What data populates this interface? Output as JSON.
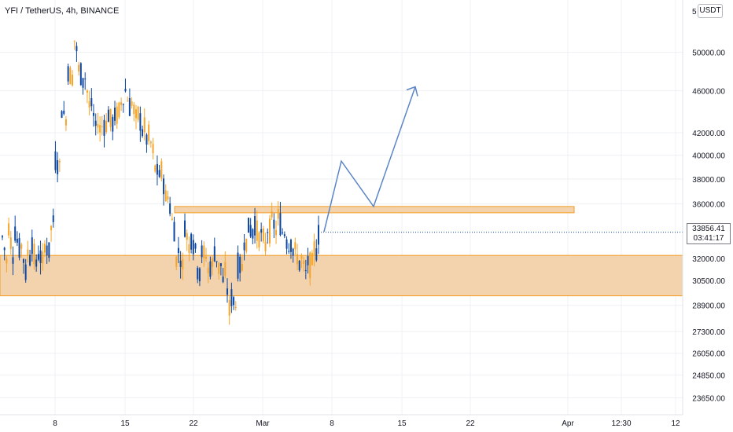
{
  "title": "YFI / TetherUS, 4h, BINANCE",
  "currency": "USDT",
  "last_price": "33856.41",
  "countdown": "03:41:17",
  "price_axis_labels": [
    "50000.00",
    "46000.00",
    "42000.00",
    "40000.00",
    "38000.00",
    "36000.00",
    "32000.00",
    "30500.00",
    "28900.00",
    "27300.00",
    "26050.00",
    "24850.00",
    "23650.00"
  ],
  "price_axis_partial_top": "5",
  "time_axis_labels": [
    "8",
    "15",
    "22",
    "Mar",
    "8",
    "15",
    "22",
    "Apr",
    "12:30",
    "12"
  ],
  "colors": {
    "up": "#0d47a1",
    "down": "#f7a529",
    "zone_fill": "#f2d3ae",
    "zone_border": "#f39c1f",
    "arrow": "#5b85c6",
    "grid": "#eef0f3"
  },
  "chart_data": {
    "type": "candlestick",
    "symbol": "YFI / TetherUS",
    "interval": "4h",
    "exchange": "BINANCE",
    "y_scale": "log",
    "ylim": [
      22800,
      56000
    ],
    "last_price": 33856.41,
    "x_ticks": [
      "8",
      "15",
      "22",
      "Mar",
      "8",
      "15",
      "22",
      "Apr",
      "12:30",
      "12"
    ],
    "y_ticks": [
      50000,
      46000,
      42000,
      40000,
      38000,
      36000,
      32000,
      30500,
      28900,
      27300,
      26050,
      24850,
      23650
    ],
    "price_path": [
      [
        32200,
        33500
      ],
      [
        31200,
        34500
      ],
      [
        31600,
        34200
      ],
      [
        32400,
        33600
      ],
      [
        30900,
        32800
      ],
      [
        31800,
        33200
      ],
      [
        31100,
        32400
      ],
      [
        31700,
        33100
      ],
      [
        32400,
        33700
      ],
      [
        35100,
        39500
      ],
      [
        39100,
        44300
      ],
      [
        43100,
        48200
      ],
      [
        47300,
        52300
      ],
      [
        49300,
        48200
      ],
      [
        46700,
        47800
      ],
      [
        44100,
        45200
      ],
      [
        42400,
        43400
      ],
      [
        41900,
        42600
      ],
      [
        42800,
        43800
      ],
      [
        42600,
        43400
      ],
      [
        44000,
        44800
      ],
      [
        45200,
        46100
      ],
      [
        43800,
        45100
      ],
      [
        43000,
        44200
      ],
      [
        42000,
        43400
      ],
      [
        40300,
        41800
      ],
      [
        39800,
        39000
      ],
      [
        38100,
        39300
      ],
      [
        36200,
        37400
      ],
      [
        34700,
        36100
      ],
      [
        30300,
        32600
      ],
      [
        31100,
        34700
      ],
      [
        32600,
        33700
      ],
      [
        32600,
        31400
      ],
      [
        30900,
        32400
      ],
      [
        32100,
        31100
      ],
      [
        31600,
        32800
      ],
      [
        31300,
        32500
      ],
      [
        29600,
        31200
      ],
      [
        28000,
        29400
      ],
      [
        28900,
        31400
      ],
      [
        31400,
        33200
      ],
      [
        33100,
        34200
      ],
      [
        33700,
        34600
      ],
      [
        33300,
        34100
      ],
      [
        32800,
        33900
      ],
      [
        34200,
        34900
      ],
      [
        33600,
        35200
      ],
      [
        33600,
        34100
      ],
      [
        32600,
        33700
      ],
      [
        31800,
        32600
      ],
      [
        31200,
        32100
      ],
      [
        30800,
        31700
      ],
      [
        31600,
        32900
      ],
      [
        32300,
        33600
      ]
    ],
    "zones": [
      {
        "type": "resistance",
        "from": 35500,
        "to": 35800
      },
      {
        "type": "support",
        "from": 29500,
        "to": 32200
      }
    ],
    "projection": [
      33900,
      39500,
      35800,
      46400
    ]
  }
}
